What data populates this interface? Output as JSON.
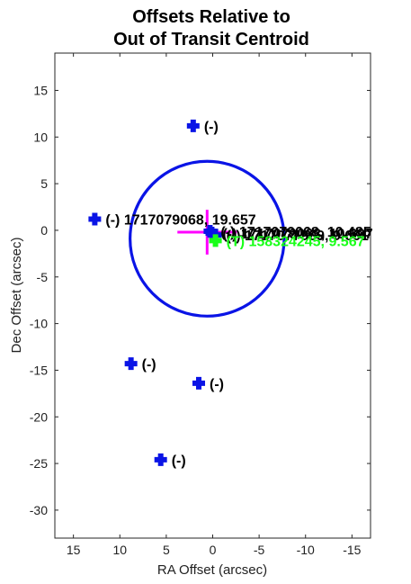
{
  "chart_data": {
    "type": "scatter",
    "title_lines": [
      "Offsets Relative to",
      "Out of Transit Centroid"
    ],
    "xlabel": "RA Offset (arcsec)",
    "ylabel": "Dec Offset (arcsec)",
    "xlim": [
      17,
      -17
    ],
    "ylim": [
      -33,
      19
    ],
    "x_reversed": true,
    "xticks": [
      15,
      10,
      5,
      0,
      -5,
      -10,
      -15
    ],
    "xtick_labels": [
      "15",
      "10",
      "5",
      "0",
      "-5",
      "-10",
      "-15"
    ],
    "yticks": [
      15,
      10,
      5,
      0,
      -5,
      -10,
      -15,
      -20,
      -25,
      -30
    ],
    "ytick_labels": [
      "15",
      "10",
      "5",
      "0",
      "-5",
      "-10",
      "-15",
      "-20",
      "-25",
      "-30"
    ],
    "grid": false,
    "stars": [
      {
        "x": 2.1,
        "y": 11.2,
        "label": "(-)",
        "color": "#0a14e6"
      },
      {
        "x": 12.7,
        "y": 1.2,
        "label": "(-) 1717079068, 19.657",
        "color": "#0a14e6"
      },
      {
        "x": 0.3,
        "y": -0.1,
        "label": "(-) 1717079068, 10.485",
        "color": "#0a14e6"
      },
      {
        "x": 0.1,
        "y": -0.3,
        "label": "(-) 1717079063, 10.697",
        "color": "#0a14e6"
      },
      {
        "x": -0.3,
        "y": -0.5,
        "label": "(-) 1717077909, 9.601",
        "color": "#0a14e6"
      },
      {
        "x": 8.8,
        "y": -14.3,
        "label": "(-)",
        "color": "#0a14e6"
      },
      {
        "x": 1.5,
        "y": -16.4,
        "label": "(-)",
        "color": "#0a14e6"
      },
      {
        "x": 5.6,
        "y": -24.6,
        "label": "(-)",
        "color": "#0a14e6"
      },
      {
        "x": -0.3,
        "y": -1.1,
        "label": "(T) 158324245, 9.567",
        "color": "#19ff19"
      }
    ],
    "centroid": {
      "x": 0.6,
      "y": -0.2,
      "x_err": 3.2,
      "y_err": 2.4,
      "color": "#ff00ff"
    },
    "circle": {
      "x": 0.6,
      "y": -0.9,
      "radius": 8.3,
      "color": "#0a14e6"
    }
  }
}
